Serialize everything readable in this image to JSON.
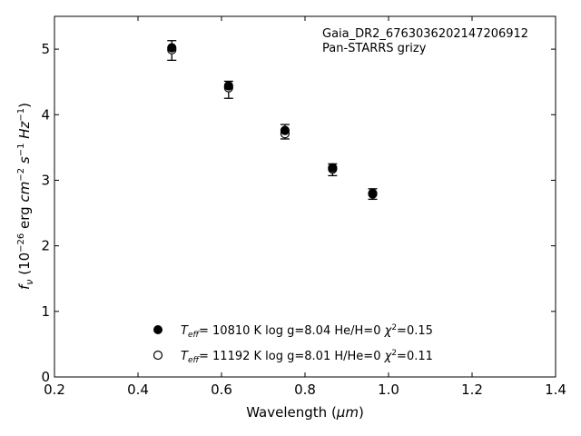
{
  "chart_data": {
    "type": "scatter",
    "title": "",
    "xlabel": "Wavelength (μm)",
    "ylabel": "f_ν (10⁻²⁶ erg cm⁻² s⁻¹ Hz⁻¹)",
    "xlim": [
      0.2,
      1.4
    ],
    "ylim": [
      0,
      5.5
    ],
    "xticks": [
      "0.2",
      "0.4",
      "0.6",
      "0.8",
      "1.0",
      "1.2",
      "1.4"
    ],
    "yticks": [
      "0",
      "1",
      "2",
      "3",
      "4",
      "5"
    ],
    "annotations": [
      "Gaia_DR2_6763036202147206912",
      "Pan-STARRS grizy"
    ],
    "observed": {
      "x": [
        0.481,
        0.617,
        0.752,
        0.866,
        0.962
      ],
      "y": [
        4.98,
        4.38,
        3.74,
        3.16,
        2.79
      ],
      "yerr": [
        0.15,
        0.13,
        0.11,
        0.09,
        0.08
      ]
    },
    "series": [
      {
        "name": "Teff= 10810 K  log g=8.04  He/H=0  χ²=0.15",
        "marker": "filled",
        "x": [
          0.481,
          0.617,
          0.752,
          0.866,
          0.962
        ],
        "y": [
          5.02,
          4.44,
          3.76,
          3.19,
          2.8
        ]
      },
      {
        "name": "Teff= 11192 K  log g=8.01  H/He=0  χ²=0.11",
        "marker": "open",
        "x": [
          0.481,
          0.617,
          0.752,
          0.866,
          0.962
        ],
        "y": [
          4.99,
          4.41,
          3.71,
          3.17,
          2.79
        ]
      }
    ],
    "legend": [
      {
        "teff": "10810",
        "logg": "8.04",
        "comp": "He/H=0",
        "chi2": "0.15",
        "marker": "filled"
      },
      {
        "teff": "11192",
        "logg": "8.01",
        "comp": "H/He=0",
        "chi2": "0.11",
        "marker": "open"
      }
    ],
    "legend_position": "lower-center",
    "grid": false,
    "colors": {
      "marker": "#000000",
      "axis": "#000000",
      "background": "#ffffff"
    }
  }
}
